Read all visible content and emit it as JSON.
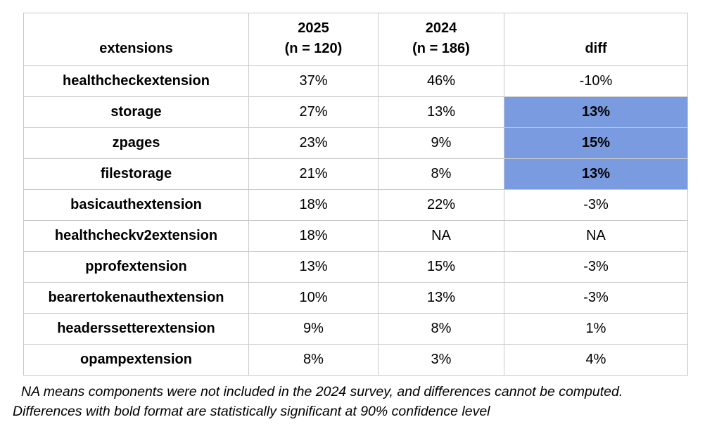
{
  "table": {
    "columns": [
      {
        "label": "extensions",
        "sublabel": ""
      },
      {
        "label": "2025",
        "sublabel": "(n = 120)"
      },
      {
        "label": "2024",
        "sublabel": "(n = 186)"
      },
      {
        "label": "diff",
        "sublabel": ""
      }
    ],
    "rows": [
      {
        "extension": "healthcheckextension",
        "y2025": "37%",
        "y2024": "46%",
        "diff": "-10%",
        "significant": false
      },
      {
        "extension": "storage",
        "y2025": "27%",
        "y2024": "13%",
        "diff": "13%",
        "significant": true
      },
      {
        "extension": "zpages",
        "y2025": "23%",
        "y2024": "9%",
        "diff": "15%",
        "significant": true
      },
      {
        "extension": "filestorage",
        "y2025": "21%",
        "y2024": "8%",
        "diff": "13%",
        "significant": true
      },
      {
        "extension": "basicauthextension",
        "y2025": "18%",
        "y2024": "22%",
        "diff": "-3%",
        "significant": false
      },
      {
        "extension": "healthcheckv2extension",
        "y2025": "18%",
        "y2024": "NA",
        "diff": "NA",
        "significant": false
      },
      {
        "extension": "pprofextension",
        "y2025": "13%",
        "y2024": "15%",
        "diff": "-3%",
        "significant": false
      },
      {
        "extension": "bearertokenauthextension",
        "y2025": "10%",
        "y2024": "13%",
        "diff": "-3%",
        "significant": false
      },
      {
        "extension": "headerssetterextension",
        "y2025": "9%",
        "y2024": "8%",
        "diff": "1%",
        "significant": false
      },
      {
        "extension": "opampextension",
        "y2025": "8%",
        "y2024": "3%",
        "diff": "4%",
        "significant": false
      }
    ]
  },
  "footnotes": {
    "line1": "NA means components were not included in the 2024 survey, and differences cannot be computed.",
    "line2": "Differences with bold format are statistically significant at 90% confidence level"
  },
  "colors": {
    "highlight_blue": "#7a9be0",
    "border_gray": "#c9c9c9"
  },
  "chart_data": {
    "type": "table",
    "title": "",
    "columns": [
      "extensions",
      "2025 (n = 120)",
      "2024 (n = 186)",
      "diff"
    ],
    "rows": [
      [
        "healthcheckextension",
        "37%",
        "46%",
        "-10%"
      ],
      [
        "storage",
        "27%",
        "13%",
        "13%"
      ],
      [
        "zpages",
        "23%",
        "9%",
        "15%"
      ],
      [
        "filestorage",
        "21%",
        "8%",
        "13%"
      ],
      [
        "basicauthextension",
        "18%",
        "22%",
        "-3%"
      ],
      [
        "healthcheckv2extension",
        "18%",
        "NA",
        "NA"
      ],
      [
        "pprofextension",
        "13%",
        "15%",
        "-3%"
      ],
      [
        "bearertokenauthextension",
        "10%",
        "13%",
        "-3%"
      ],
      [
        "headerssetterextension",
        "9%",
        "8%",
        "1%"
      ],
      [
        "opampextension",
        "8%",
        "3%",
        "4%"
      ]
    ],
    "highlighted_diff_rows": [
      "storage",
      "zpages",
      "filestorage"
    ],
    "highlight_meaning": "statistically significant at 90% confidence level",
    "sample_sizes": {
      "2025": 120,
      "2024": 186
    }
  }
}
